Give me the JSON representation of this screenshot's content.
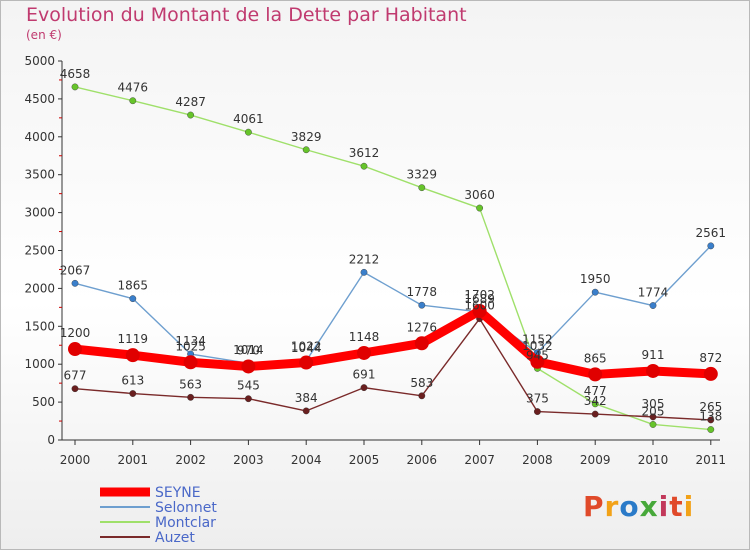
{
  "header": {
    "title": "Evolution du Montant de la Dette par Habitant",
    "subtitle": "(en €)"
  },
  "logo": {
    "text": "Proxiti",
    "colors": [
      "#e04a2a",
      "#f2a218",
      "#2a7ac8",
      "#47a83a",
      "#c2385a"
    ]
  },
  "chart_data": {
    "type": "line",
    "categories": [
      "2000",
      "2001",
      "2002",
      "2003",
      "2004",
      "2005",
      "2006",
      "2007",
      "2008",
      "2009",
      "2010",
      "2011"
    ],
    "ylim": [
      0,
      5000
    ],
    "yticks": [
      "0",
      "500",
      "1000",
      "1500",
      "2000",
      "2500",
      "3000",
      "3500",
      "4000",
      "4500",
      "5000"
    ],
    "grid": false,
    "legend_position": "bottom-left",
    "series": [
      {
        "name": "SEYNE",
        "color": "#ff0000",
        "marker": "#e00000",
        "width": 9,
        "values": [
          1200,
          1119,
          1025,
          970,
          1022,
          1148,
          1276,
          1702,
          1032,
          865,
          911,
          872
        ],
        "labels": [
          "1200",
          "1119",
          "1025",
          "970",
          "1022",
          "1148",
          "1276",
          "1702",
          "1032",
          "865",
          "911",
          "872"
        ]
      },
      {
        "name": "Selonnet",
        "color": "#6e9fcf",
        "marker": "#3a7fcb",
        "width": 1.4,
        "values": [
          2067,
          1865,
          1134,
          1014,
          1044,
          2212,
          1778,
          1689,
          1152,
          1950,
          1774,
          2561
        ],
        "labels": [
          "2067",
          "1865",
          "1134",
          "1014",
          "1044",
          "2212",
          "1778",
          "1689",
          "1152",
          "1950",
          "1774",
          "2561"
        ]
      },
      {
        "name": "Montclar",
        "color": "#9fe06a",
        "marker": "#66c42a",
        "width": 1.4,
        "values": [
          4658,
          4476,
          4287,
          4061,
          3829,
          3612,
          3329,
          3060,
          945,
          477,
          205,
          138
        ],
        "labels": [
          "4658",
          "4476",
          "4287",
          "4061",
          "3829",
          "3612",
          "3329",
          "3060",
          "945",
          "477",
          "205",
          "138"
        ]
      },
      {
        "name": "Auzet",
        "color": "#7a2a2a",
        "marker": "#6a1f1f",
        "width": 1.4,
        "values": [
          677,
          613,
          563,
          545,
          384,
          691,
          583,
          1600,
          375,
          342,
          305,
          265
        ],
        "labels": [
          "677",
          "613",
          "563",
          "545",
          "384",
          "691",
          "583",
          "1600",
          "375",
          "342",
          "305",
          "265"
        ]
      }
    ]
  }
}
